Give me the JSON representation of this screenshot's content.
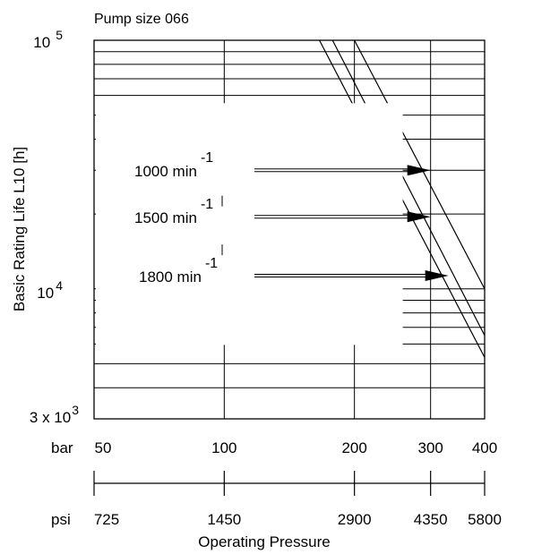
{
  "chart_data": {
    "type": "line",
    "title": "Pump size 066",
    "xlabel": "Operating Pressure",
    "ylabel": "Basic Rating Life L10 [h]",
    "x_scale": "log",
    "y_scale": "log",
    "xlim": [
      50,
      400
    ],
    "ylim": [
      3000,
      100000
    ],
    "x_unit_primary": "bar",
    "x_unit_secondary": "psi",
    "x_ticks_bar": [
      50,
      100,
      200,
      300,
      400
    ],
    "x_ticks_psi": [
      725,
      1450,
      2900,
      4350,
      5800
    ],
    "x_ticks_bar_labels": [
      "50",
      "100",
      "200",
      "300",
      "400"
    ],
    "x_ticks_psi_labels": [
      "725",
      "1450",
      "2900",
      "4350",
      "5800"
    ],
    "y_labels": {
      "top": {
        "base": "10",
        "exp": "5"
      },
      "mid": {
        "base": "10",
        "exp": "4"
      },
      "bottom": {
        "base": "3 x 10",
        "exp": "3"
      }
    },
    "grid": true,
    "series": [
      {
        "name": "1000 min",
        "exp": "-1",
        "points": [
          [
            200,
            100000
          ],
          [
            400,
            10000
          ]
        ]
      },
      {
        "name": "1500 min",
        "exp": "-1",
        "points": [
          [
            178,
            100000
          ],
          [
            400,
            6500
          ]
        ]
      },
      {
        "name": "1800 min",
        "exp": "-1",
        "points": [
          [
            166,
            100000
          ],
          [
            400,
            5300
          ]
        ]
      }
    ],
    "arrow_targets": [
      [
        300,
        30000
      ],
      [
        300,
        19500
      ],
      [
        330,
        11300
      ]
    ],
    "label_anchor": [
      115,
      30000
    ]
  }
}
